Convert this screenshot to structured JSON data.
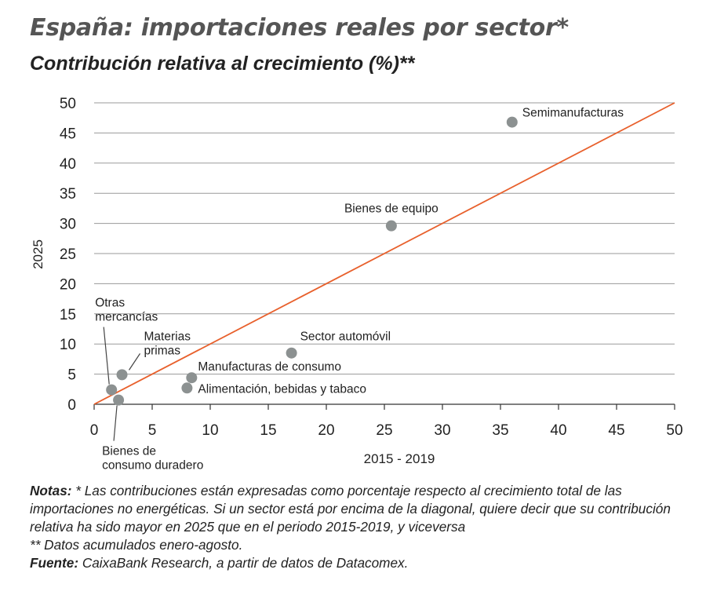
{
  "title": "España: importaciones reales por sector*",
  "subtitle": "Contribución relativa al crecimiento (%)**",
  "chart_data": {
    "type": "scatter",
    "xlabel": "2015 - 2019",
    "ylabel": "2025",
    "xlim": [
      0,
      50
    ],
    "ylim": [
      0,
      50
    ],
    "xticks": [
      0,
      5,
      10,
      15,
      20,
      25,
      30,
      35,
      40,
      45,
      50
    ],
    "yticks": [
      0,
      5,
      10,
      15,
      20,
      25,
      30,
      35,
      40,
      45,
      50
    ],
    "grid": "horizontal",
    "diagonal": {
      "from": [
        0,
        0
      ],
      "to": [
        50,
        50
      ],
      "color": "#e8602c"
    },
    "point_color": "#8c9191",
    "points": [
      {
        "label": "Semimanufacturas",
        "x": 36.0,
        "y": 46.8
      },
      {
        "label": "Bienes de equipo",
        "x": 25.6,
        "y": 29.6
      },
      {
        "label": "Sector automóvil",
        "x": 17.0,
        "y": 8.5
      },
      {
        "label": "Manufacturas de consumo",
        "x": 8.4,
        "y": 4.4
      },
      {
        "label": "Alimentación, bebidas y tabaco",
        "x": 8.0,
        "y": 2.7
      },
      {
        "label": "Materias primas",
        "label_lines": [
          "Materias",
          "primas"
        ],
        "x": 2.4,
        "y": 4.9
      },
      {
        "label": "Otras mercancías",
        "label_lines": [
          "Otras",
          "mercancías"
        ],
        "x": 1.5,
        "y": 2.4
      },
      {
        "label": "Bienes de consumo duradero",
        "label_lines": [
          "Bienes de",
          "consumo duradero"
        ],
        "x": 2.1,
        "y": 0.7
      }
    ]
  },
  "notes": {
    "notas_label": "Notas:",
    "notas_text": " * Las contribuciones están expresadas como porcentaje respecto al crecimiento total de las importaciones no energéticas. Si un sector está por encima de la diagonal, quiere decir que su contribución relativa ha sido mayor en 2025 que en el periodo 2015-2019, y viceversa",
    "datos_text": " ** Datos acumulados enero-agosto.",
    "fuente_label": "Fuente:",
    "fuente_text": " CaixaBank Research, a partir de datos de Datacomex."
  }
}
